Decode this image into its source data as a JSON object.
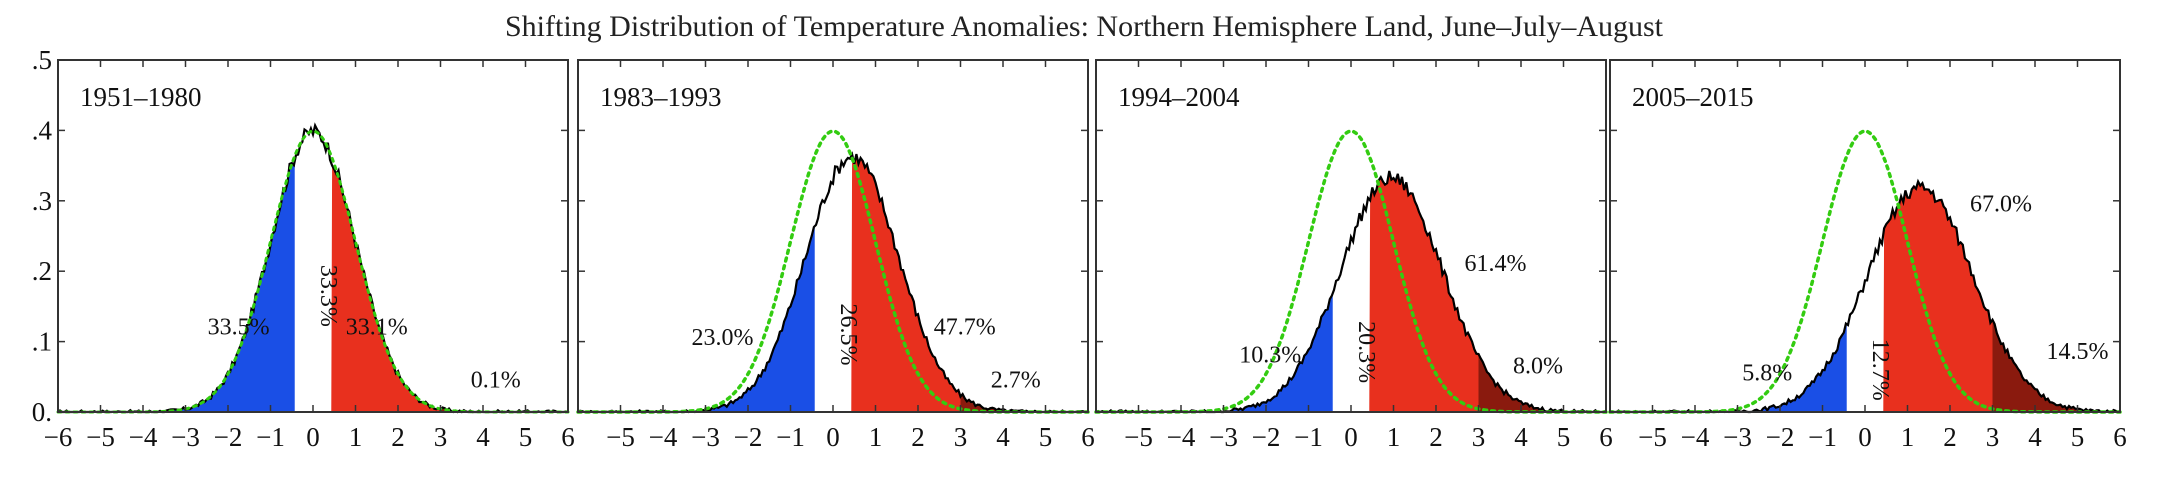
{
  "chart_data": {
    "type": "area",
    "title": "Shifting Distribution of Temperature Anomalies: Northern Hemisphere Land, June–July–August",
    "xlim": [
      -6,
      6
    ],
    "ylim": [
      0,
      0.5
    ],
    "x_ticks": [
      -6,
      -5,
      -4,
      -3,
      -2,
      -1,
      0,
      1,
      2,
      3,
      4,
      5,
      6
    ],
    "x_tick_labels": [
      "−6",
      "−5",
      "−4",
      "−3",
      "−2",
      "−1",
      "0",
      "1",
      "2",
      "3",
      "4",
      "5",
      "6"
    ],
    "y_ticks": [
      0,
      0.1,
      0.2,
      0.3,
      0.4,
      0.5
    ],
    "y_tick_labels": [
      "0.",
      ".1",
      ".2",
      ".3",
      ".4",
      ".5"
    ],
    "grid": false,
    "thresholds": [
      -0.43,
      0.43,
      3.0
    ],
    "colors": {
      "cold": "#1a4fe6",
      "neutral": "#ffffff",
      "hot": "#e8301e",
      "extreme_hot": "#8a1a0e",
      "baseline": "#33cc11",
      "histogram": "#000000"
    },
    "baseline_reference": {
      "mean": 0,
      "sd": 1,
      "style": "dotted"
    },
    "panels": [
      {
        "label": "1951–1980",
        "mean": 0.0,
        "sd": 1.0,
        "show_baseline": false,
        "percents": {
          "cold": "33.5%",
          "neutral": "33.3%",
          "hot": "33.1%",
          "extreme_hot": "0.1%"
        },
        "label_pos": {
          "cold": [
            -1.75,
            0.11
          ],
          "neutral": [
            0.0,
            0.165
          ],
          "hot": [
            1.5,
            0.11
          ],
          "extreme_hot": [
            4.3,
            0.035
          ]
        }
      },
      {
        "label": "1983–1993",
        "mean": 0.45,
        "sd": 1.1,
        "show_baseline": true,
        "percents": {
          "cold": "23.0%",
          "neutral": "26.5%",
          "hot": "47.7%",
          "extreme_hot": "2.7%"
        },
        "label_pos": {
          "cold": [
            -2.6,
            0.095
          ],
          "neutral": [
            0.0,
            0.11
          ],
          "hot": [
            3.1,
            0.11
          ],
          "extreme_hot": [
            4.3,
            0.035
          ]
        }
      },
      {
        "label": "1994–2004",
        "mean": 0.95,
        "sd": 1.2,
        "show_baseline": true,
        "percents": {
          "cold": "10.3%",
          "neutral": "20.3%",
          "hot": "61.4%",
          "extreme_hot": "8.0%"
        },
        "label_pos": {
          "cold": [
            -1.9,
            0.07
          ],
          "neutral": [
            0.0,
            0.085
          ],
          "hot": [
            3.4,
            0.2
          ],
          "extreme_hot": [
            4.4,
            0.055
          ]
        }
      },
      {
        "label": "2005–2015",
        "mean": 1.3,
        "sd": 1.25,
        "show_baseline": true,
        "percents": {
          "cold": "5.8%",
          "neutral": "12.7%",
          "hot": "67.0%",
          "extreme_hot": "14.5%"
        },
        "label_pos": {
          "cold": [
            -2.3,
            0.045
          ],
          "neutral": [
            0.0,
            0.06
          ],
          "hot": [
            3.2,
            0.285
          ],
          "extreme_hot": [
            5.0,
            0.075
          ]
        }
      }
    ]
  }
}
